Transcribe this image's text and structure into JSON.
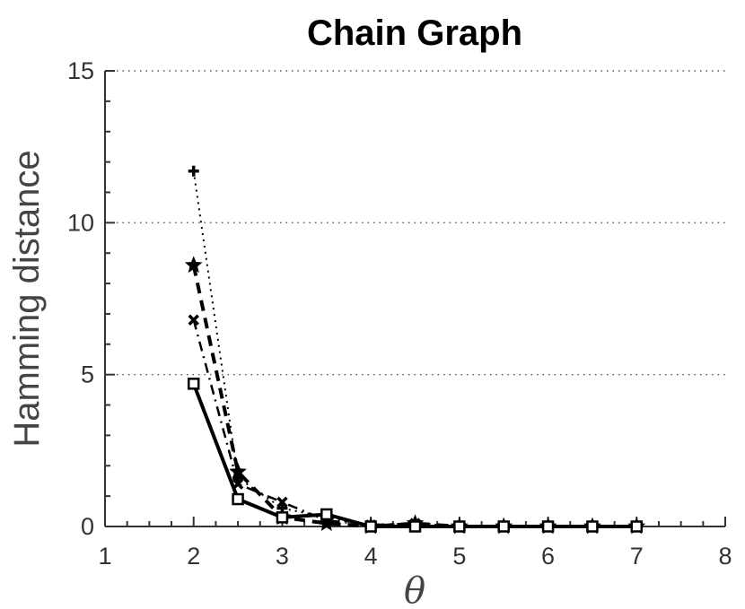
{
  "chart_data": {
    "type": "line",
    "title": "Chain Graph",
    "xlabel": "θ",
    "ylabel": "Hamming distance",
    "xlim": [
      1,
      8
    ],
    "ylim": [
      0,
      15
    ],
    "xticks": [
      1,
      2,
      3,
      4,
      5,
      6,
      7,
      8
    ],
    "yticks": [
      0,
      5,
      10,
      15
    ],
    "grid": "y-major dotted",
    "legend": "none",
    "x": [
      2,
      2.5,
      3,
      3.5,
      4,
      4.5,
      5,
      5.5,
      6,
      6.5,
      7
    ],
    "series": [
      {
        "values": [
          4.7,
          0.9,
          0.3,
          0.4,
          0.0,
          0.0,
          0.0,
          0.0,
          0.0,
          0.0,
          0.0
        ],
        "marker": "square",
        "linestyle": "solid",
        "color": "#000000"
      },
      {
        "values": [
          6.8,
          1.4,
          0.8,
          0.2,
          0.05,
          0.1,
          0.0,
          0.0,
          0.0,
          0.0,
          0.0
        ],
        "marker": "x",
        "linestyle": "dashdot",
        "color": "#000000"
      },
      {
        "values": [
          8.6,
          1.8,
          0.3,
          0.1,
          0.0,
          0.1,
          0.0,
          0.0,
          0.0,
          0.0,
          0.0
        ],
        "marker": "star",
        "linestyle": "dashed",
        "color": "#000000"
      },
      {
        "values": [
          11.7,
          1.6,
          0.6,
          0.3,
          0.0,
          0.0,
          0.0,
          0.0,
          0.0,
          0.0,
          0.0
        ],
        "marker": "plus",
        "linestyle": "dotted",
        "color": "#000000"
      }
    ]
  }
}
